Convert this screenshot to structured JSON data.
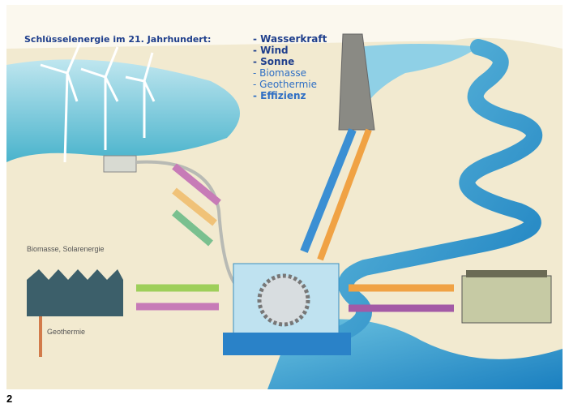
{
  "header": {
    "title": "Schlüsselenergie im 21. Jahrhundert:",
    "items": [
      "- Wasserkraft",
      "- Wind",
      "- Sonne",
      "- Biomasse",
      "- Geothermie",
      "- Effizienz"
    ]
  },
  "labels": {
    "left_building": "Biomasse, Solarenergie",
    "geothermal": "Geothermie"
  },
  "figure_number": "2"
}
